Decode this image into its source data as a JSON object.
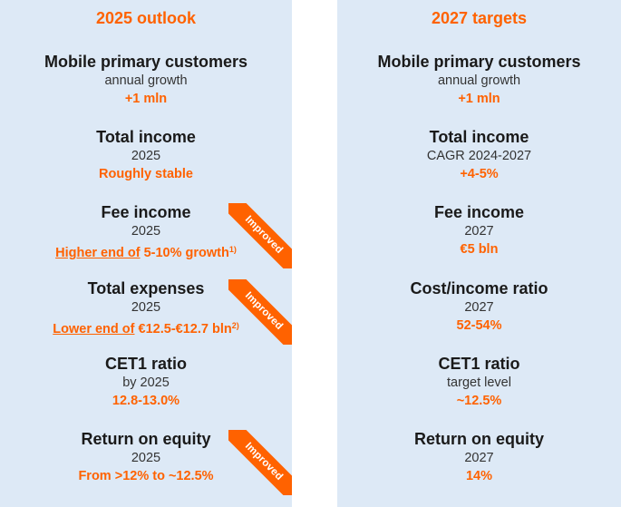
{
  "outlook": {
    "title": "2025 outlook",
    "metrics": [
      {
        "name": "Mobile primary customers",
        "sub": "annual growth",
        "value": "+1 mln"
      },
      {
        "name": "Total income",
        "sub": "2025",
        "value": "Roughly stable"
      },
      {
        "name": "Fee income",
        "sub": "2025",
        "value_underlined": "Higher end of",
        "value_rest": " 5-10% growth",
        "footnote": "1)"
      },
      {
        "name": "Total expenses",
        "sub": "2025",
        "value_underlined": "Lower end of",
        "value_rest": " €12.5-€12.7 bln",
        "footnote": "2)"
      },
      {
        "name": "CET1 ratio",
        "sub": "by 2025",
        "value": "12.8-13.0%"
      },
      {
        "name": "Return on equity",
        "sub": "2025",
        "value": "From >12% to ~12.5%"
      }
    ],
    "ribbon_label": "Improved"
  },
  "targets": {
    "title": "2027 targets",
    "metrics": [
      {
        "name": "Mobile primary customers",
        "sub": "annual growth",
        "value": "+1 mln"
      },
      {
        "name": "Total income",
        "sub": "CAGR 2024-2027",
        "value": "+4-5%"
      },
      {
        "name": "Fee income",
        "sub": "2027",
        "value": "€5 bln"
      },
      {
        "name": "Cost/income ratio",
        "sub": "2027",
        "value": "52-54%"
      },
      {
        "name": "CET1 ratio",
        "sub": "target level",
        "value": "~12.5%"
      },
      {
        "name": "Return on equity",
        "sub": "2027",
        "value": "14%"
      }
    ]
  },
  "colors": {
    "accent": "#ff6200",
    "panel_bg": "#dde9f6",
    "text": "#1a1a1a"
  }
}
